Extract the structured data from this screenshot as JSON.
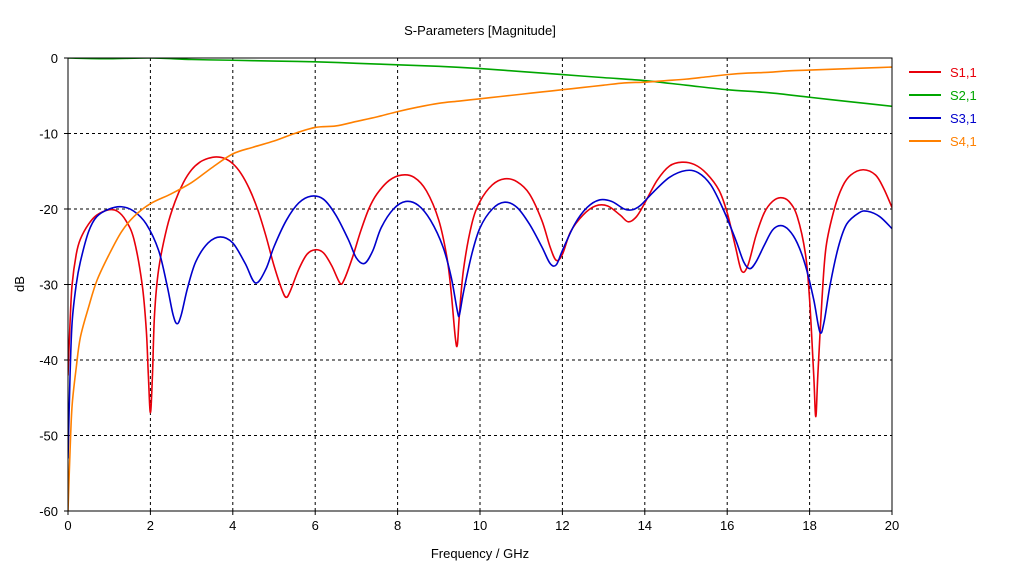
{
  "chart_data": {
    "type": "line",
    "title": "S-Parameters [Magnitude]",
    "xlabel": "Frequency / GHz",
    "ylabel": "dB",
    "xlim": [
      0,
      20
    ],
    "ylim": [
      -60,
      0
    ],
    "xticks": [
      0,
      2,
      4,
      6,
      8,
      10,
      12,
      14,
      16,
      18,
      20
    ],
    "yticks": [
      0,
      -10,
      -20,
      -30,
      -40,
      -50,
      -60
    ],
    "grid": true,
    "legend_position": "right",
    "series": [
      {
        "name": "S1,1",
        "color": "#e8000b",
        "points": [
          [
            0.0,
            -42
          ],
          [
            0.05,
            -35
          ],
          [
            0.1,
            -30
          ],
          [
            0.2,
            -26
          ],
          [
            0.3,
            -24
          ],
          [
            0.5,
            -22
          ],
          [
            0.7,
            -20.8
          ],
          [
            1.0,
            -20.1
          ],
          [
            1.2,
            -20.3
          ],
          [
            1.4,
            -21.5
          ],
          [
            1.6,
            -24
          ],
          [
            1.8,
            -30
          ],
          [
            1.9,
            -36
          ],
          [
            1.95,
            -42
          ],
          [
            2.0,
            -47
          ],
          [
            2.05,
            -42
          ],
          [
            2.1,
            -34
          ],
          [
            2.2,
            -28
          ],
          [
            2.4,
            -22.5
          ],
          [
            2.6,
            -19
          ],
          [
            2.8,
            -16.5
          ],
          [
            3.0,
            -14.8
          ],
          [
            3.2,
            -13.8
          ],
          [
            3.4,
            -13.3
          ],
          [
            3.6,
            -13.1
          ],
          [
            3.8,
            -13.3
          ],
          [
            4.0,
            -14
          ],
          [
            4.2,
            -15.3
          ],
          [
            4.4,
            -17.3
          ],
          [
            4.6,
            -20
          ],
          [
            4.8,
            -23.5
          ],
          [
            5.0,
            -27.5
          ],
          [
            5.2,
            -30.8
          ],
          [
            5.3,
            -31.7
          ],
          [
            5.4,
            -30.8
          ],
          [
            5.6,
            -28
          ],
          [
            5.8,
            -26
          ],
          [
            6.0,
            -25.4
          ],
          [
            6.2,
            -25.8
          ],
          [
            6.4,
            -27.5
          ],
          [
            6.6,
            -29.8
          ],
          [
            6.7,
            -29.4
          ],
          [
            6.9,
            -26.5
          ],
          [
            7.1,
            -23
          ],
          [
            7.3,
            -20
          ],
          [
            7.5,
            -18
          ],
          [
            7.8,
            -16.2
          ],
          [
            8.1,
            -15.5
          ],
          [
            8.4,
            -15.8
          ],
          [
            8.7,
            -17.6
          ],
          [
            9.0,
            -21.5
          ],
          [
            9.2,
            -26.5
          ],
          [
            9.3,
            -31
          ],
          [
            9.4,
            -37
          ],
          [
            9.45,
            -38
          ],
          [
            9.5,
            -34
          ],
          [
            9.6,
            -28
          ],
          [
            9.8,
            -22
          ],
          [
            10.0,
            -19
          ],
          [
            10.3,
            -16.8
          ],
          [
            10.6,
            -16
          ],
          [
            10.9,
            -16.4
          ],
          [
            11.2,
            -18
          ],
          [
            11.5,
            -21.5
          ],
          [
            11.7,
            -25
          ],
          [
            11.85,
            -26.8
          ],
          [
            12.0,
            -26
          ],
          [
            12.2,
            -23
          ],
          [
            12.5,
            -20.8
          ],
          [
            12.8,
            -19.6
          ],
          [
            13.1,
            -19.6
          ],
          [
            13.4,
            -20.8
          ],
          [
            13.6,
            -21.7
          ],
          [
            13.8,
            -21
          ],
          [
            14.0,
            -19.2
          ],
          [
            14.3,
            -16.2
          ],
          [
            14.6,
            -14.3
          ],
          [
            14.9,
            -13.8
          ],
          [
            15.2,
            -14.1
          ],
          [
            15.5,
            -15.3
          ],
          [
            15.8,
            -17.5
          ],
          [
            16.0,
            -20.5
          ],
          [
            16.2,
            -25
          ],
          [
            16.35,
            -28.2
          ],
          [
            16.5,
            -27.5
          ],
          [
            16.7,
            -23.5
          ],
          [
            16.9,
            -20.5
          ],
          [
            17.1,
            -19
          ],
          [
            17.3,
            -18.5
          ],
          [
            17.5,
            -19
          ],
          [
            17.7,
            -21
          ],
          [
            17.9,
            -26
          ],
          [
            18.0,
            -32
          ],
          [
            18.1,
            -42
          ],
          [
            18.15,
            -47.5
          ],
          [
            18.2,
            -42
          ],
          [
            18.3,
            -32
          ],
          [
            18.4,
            -25
          ],
          [
            18.6,
            -20
          ],
          [
            18.8,
            -17
          ],
          [
            19.0,
            -15.5
          ],
          [
            19.3,
            -14.8
          ],
          [
            19.6,
            -15.5
          ],
          [
            19.8,
            -17.3
          ],
          [
            20.0,
            -19.8
          ]
        ]
      },
      {
        "name": "S2,1",
        "color": "#00a600",
        "points": [
          [
            0.0,
            0
          ],
          [
            1.0,
            -0.1
          ],
          [
            2.0,
            0
          ],
          [
            3.0,
            -0.2
          ],
          [
            4.0,
            -0.3
          ],
          [
            5.0,
            -0.4
          ],
          [
            6.0,
            -0.5
          ],
          [
            7.0,
            -0.7
          ],
          [
            8.0,
            -0.9
          ],
          [
            9.0,
            -1.1
          ],
          [
            10.0,
            -1.4
          ],
          [
            11.0,
            -1.8
          ],
          [
            12.0,
            -2.2
          ],
          [
            13.0,
            -2.6
          ],
          [
            14.0,
            -3.0
          ],
          [
            15.0,
            -3.6
          ],
          [
            16.0,
            -4.2
          ],
          [
            17.0,
            -4.6
          ],
          [
            18.0,
            -5.2
          ],
          [
            19.0,
            -5.8
          ],
          [
            20.0,
            -6.4
          ]
        ]
      },
      {
        "name": "S3,1",
        "color": "#0000cc",
        "points": [
          [
            0.0,
            -53
          ],
          [
            0.05,
            -42
          ],
          [
            0.1,
            -35
          ],
          [
            0.2,
            -30
          ],
          [
            0.3,
            -27
          ],
          [
            0.5,
            -23
          ],
          [
            0.7,
            -21
          ],
          [
            1.0,
            -20
          ],
          [
            1.3,
            -19.7
          ],
          [
            1.6,
            -20.3
          ],
          [
            1.9,
            -22
          ],
          [
            2.2,
            -25.5
          ],
          [
            2.4,
            -30
          ],
          [
            2.55,
            -34
          ],
          [
            2.65,
            -35.2
          ],
          [
            2.75,
            -34
          ],
          [
            2.9,
            -30.5
          ],
          [
            3.1,
            -27
          ],
          [
            3.4,
            -24.5
          ],
          [
            3.7,
            -23.7
          ],
          [
            4.0,
            -24.5
          ],
          [
            4.3,
            -27.2
          ],
          [
            4.55,
            -29.8
          ],
          [
            4.8,
            -28
          ],
          [
            5.0,
            -25
          ],
          [
            5.3,
            -21.5
          ],
          [
            5.6,
            -19.2
          ],
          [
            5.9,
            -18.3
          ],
          [
            6.2,
            -18.7
          ],
          [
            6.5,
            -20.8
          ],
          [
            6.8,
            -24
          ],
          [
            7.0,
            -26.5
          ],
          [
            7.2,
            -27.2
          ],
          [
            7.4,
            -25.5
          ],
          [
            7.6,
            -22.5
          ],
          [
            7.9,
            -20
          ],
          [
            8.2,
            -19
          ],
          [
            8.5,
            -19.5
          ],
          [
            8.8,
            -21.5
          ],
          [
            9.1,
            -25
          ],
          [
            9.3,
            -29
          ],
          [
            9.45,
            -33.5
          ],
          [
            9.5,
            -34
          ],
          [
            9.6,
            -31
          ],
          [
            9.8,
            -26
          ],
          [
            10.0,
            -22.5
          ],
          [
            10.3,
            -20
          ],
          [
            10.6,
            -19.1
          ],
          [
            10.9,
            -19.8
          ],
          [
            11.2,
            -22
          ],
          [
            11.5,
            -25
          ],
          [
            11.7,
            -27.2
          ],
          [
            11.85,
            -27.4
          ],
          [
            12.0,
            -25.5
          ],
          [
            12.3,
            -22
          ],
          [
            12.6,
            -19.8
          ],
          [
            12.9,
            -18.8
          ],
          [
            13.2,
            -19
          ],
          [
            13.5,
            -20
          ],
          [
            13.7,
            -20.1
          ],
          [
            13.9,
            -19.5
          ],
          [
            14.2,
            -17.8
          ],
          [
            14.6,
            -15.8
          ],
          [
            15.0,
            -14.9
          ],
          [
            15.3,
            -15.2
          ],
          [
            15.6,
            -16.8
          ],
          [
            15.9,
            -20
          ],
          [
            16.2,
            -24
          ],
          [
            16.4,
            -27
          ],
          [
            16.55,
            -27.9
          ],
          [
            16.7,
            -27
          ],
          [
            16.9,
            -24.8
          ],
          [
            17.1,
            -22.8
          ],
          [
            17.3,
            -22.2
          ],
          [
            17.5,
            -22.8
          ],
          [
            17.7,
            -24.5
          ],
          [
            17.9,
            -27.5
          ],
          [
            18.1,
            -32
          ],
          [
            18.25,
            -36.3
          ],
          [
            18.35,
            -35
          ],
          [
            18.5,
            -30
          ],
          [
            18.7,
            -25
          ],
          [
            18.9,
            -22
          ],
          [
            19.2,
            -20.5
          ],
          [
            19.4,
            -20.3
          ],
          [
            19.7,
            -21
          ],
          [
            20.0,
            -22.6
          ]
        ]
      },
      {
        "name": "S4,1",
        "color": "#ff8000",
        "points": [
          [
            0.0,
            -60
          ],
          [
            0.05,
            -52
          ],
          [
            0.1,
            -46
          ],
          [
            0.2,
            -41
          ],
          [
            0.3,
            -37
          ],
          [
            0.5,
            -33
          ],
          [
            0.7,
            -29.5
          ],
          [
            1.0,
            -26
          ],
          [
            1.3,
            -23
          ],
          [
            1.6,
            -21
          ],
          [
            2.0,
            -19.3
          ],
          [
            2.5,
            -18
          ],
          [
            3.0,
            -16.5
          ],
          [
            3.5,
            -14.5
          ],
          [
            4.0,
            -12.7
          ],
          [
            4.5,
            -11.8
          ],
          [
            5.0,
            -11
          ],
          [
            5.5,
            -10
          ],
          [
            6.0,
            -9.2
          ],
          [
            6.5,
            -9
          ],
          [
            7.0,
            -8.4
          ],
          [
            7.5,
            -7.8
          ],
          [
            8.0,
            -7.1
          ],
          [
            8.5,
            -6.5
          ],
          [
            9.0,
            -6.0
          ],
          [
            9.5,
            -5.7
          ],
          [
            10.0,
            -5.4
          ],
          [
            10.5,
            -5.1
          ],
          [
            11.0,
            -4.8
          ],
          [
            11.5,
            -4.5
          ],
          [
            12.0,
            -4.2
          ],
          [
            12.5,
            -3.9
          ],
          [
            13.0,
            -3.6
          ],
          [
            13.5,
            -3.3
          ],
          [
            14.0,
            -3.2
          ],
          [
            14.5,
            -3.0
          ],
          [
            15.0,
            -2.8
          ],
          [
            15.5,
            -2.5
          ],
          [
            16.0,
            -2.2
          ],
          [
            16.5,
            -2.0
          ],
          [
            17.0,
            -1.9
          ],
          [
            17.5,
            -1.7
          ],
          [
            18.0,
            -1.6
          ],
          [
            18.5,
            -1.5
          ],
          [
            19.0,
            -1.4
          ],
          [
            19.5,
            -1.3
          ],
          [
            20.0,
            -1.2
          ]
        ]
      }
    ]
  }
}
